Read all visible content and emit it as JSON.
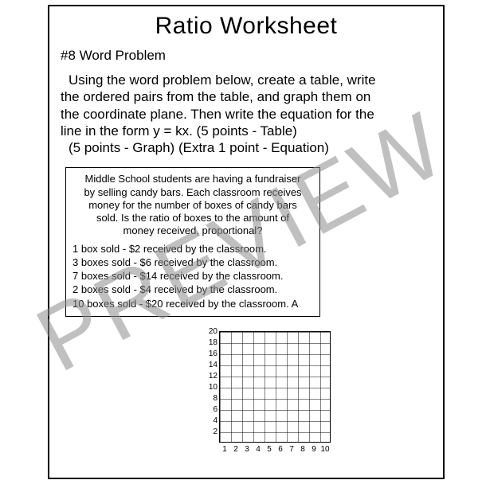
{
  "title": "Ratio Worksheet",
  "problem_label": "#8 Word Problem",
  "instructions_lines": [
    "Using the word problem below, create a table, write",
    "the ordered pairs from the table, and graph them on",
    "the coordinate plane. Then write the equation for the",
    "line in the form y = kx.  (5 points - Table)",
    "(5 points - Graph)   (Extra 1 point - Equation)"
  ],
  "box_intro_lines": [
    "Middle School students are having a fundraiser",
    "by selling candy bars.  Each classroom receives",
    "money for the number of boxes of candy bars",
    "sold.  Is the ratio of boxes to the amount of",
    "money received, proportional?"
  ],
  "box_rows": [
    "1 box sold - $2 received by the classroom.",
    "3 boxes sold - $6 received by the classroom.",
    "7 boxes sold - $14 received by the classroom.",
    "2 boxes sold - $4 received by the classroom.",
    "10 boxes sold - $20 received by the classroom.   A"
  ],
  "graph": {
    "y_ticks": [
      "20",
      "18",
      "16",
      "14",
      "12",
      "10",
      "8",
      "6",
      "4",
      "2"
    ],
    "x_ticks": [
      "1",
      "2",
      "3",
      "4",
      "5",
      "6",
      "7",
      "8",
      "9",
      "10"
    ]
  },
  "watermark": "PREVIEW"
}
